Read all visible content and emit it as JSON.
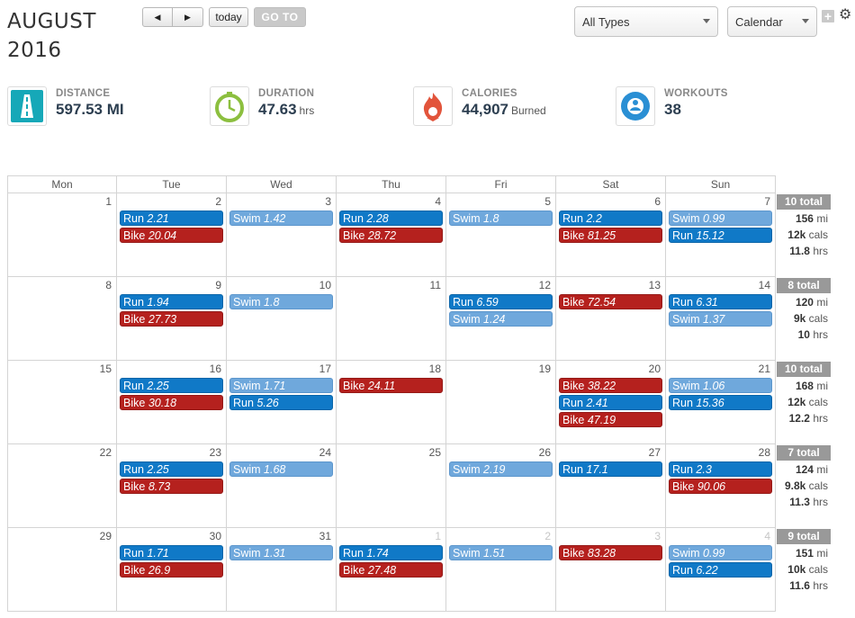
{
  "header": {
    "month": "AUGUST",
    "year": "2016",
    "nav": {
      "prev": "◀",
      "next": "▶",
      "today": "today",
      "goto": "GO TO"
    },
    "type_filter": "All Types",
    "view_select": "Calendar",
    "add_label": "+",
    "settings_label": "⚙"
  },
  "stats": [
    {
      "label": "DISTANCE",
      "value": "597.53",
      "unit": "MI",
      "icon": "road-icon",
      "color": "#16a8b8"
    },
    {
      "label": "DURATION",
      "value": "47.63",
      "unit": "hrs",
      "icon": "stopwatch-icon",
      "color": "#8cbf3f"
    },
    {
      "label": "CALORIES",
      "value": "44,907",
      "unit": "Burned",
      "icon": "flame-icon",
      "color": "#e2543b"
    },
    {
      "label": "WORKOUTS",
      "value": "38",
      "unit": "",
      "icon": "lifebuoy-icon",
      "color": "#2a8fd4"
    }
  ],
  "calendar": {
    "weekdays": [
      "Mon",
      "Tue",
      "Wed",
      "Thu",
      "Fri",
      "Sat",
      "Sun"
    ],
    "weeks": [
      {
        "days": [
          {
            "num": "1",
            "other": false,
            "events": []
          },
          {
            "num": "2",
            "other": false,
            "events": [
              {
                "type": "Run",
                "value": "2.21"
              },
              {
                "type": "Bike",
                "value": "20.04"
              }
            ]
          },
          {
            "num": "3",
            "other": false,
            "events": [
              {
                "type": "Swim",
                "value": "1.42"
              }
            ]
          },
          {
            "num": "4",
            "other": false,
            "events": [
              {
                "type": "Run",
                "value": "2.28"
              },
              {
                "type": "Bike",
                "value": "28.72"
              }
            ]
          },
          {
            "num": "5",
            "other": false,
            "events": [
              {
                "type": "Swim",
                "value": "1.8"
              }
            ]
          },
          {
            "num": "6",
            "other": false,
            "events": [
              {
                "type": "Run",
                "value": "2.2"
              },
              {
                "type": "Bike",
                "value": "81.25"
              }
            ]
          },
          {
            "num": "7",
            "other": false,
            "events": [
              {
                "type": "Swim",
                "value": "0.99"
              },
              {
                "type": "Run",
                "value": "15.12"
              }
            ]
          }
        ],
        "summary": {
          "total": "10 total",
          "mi": "156",
          "cals": "12k",
          "hrs": "11.8"
        }
      },
      {
        "days": [
          {
            "num": "8",
            "other": false,
            "events": []
          },
          {
            "num": "9",
            "other": false,
            "events": [
              {
                "type": "Run",
                "value": "1.94"
              },
              {
                "type": "Bike",
                "value": "27.73"
              }
            ]
          },
          {
            "num": "10",
            "other": false,
            "events": [
              {
                "type": "Swim",
                "value": "1.8"
              }
            ]
          },
          {
            "num": "11",
            "other": false,
            "events": []
          },
          {
            "num": "12",
            "other": false,
            "events": [
              {
                "type": "Run",
                "value": "6.59"
              },
              {
                "type": "Swim",
                "value": "1.24"
              }
            ]
          },
          {
            "num": "13",
            "other": false,
            "events": [
              {
                "type": "Bike",
                "value": "72.54"
              }
            ]
          },
          {
            "num": "14",
            "other": false,
            "events": [
              {
                "type": "Run",
                "value": "6.31"
              },
              {
                "type": "Swim",
                "value": "1.37"
              }
            ]
          }
        ],
        "summary": {
          "total": "8 total",
          "mi": "120",
          "cals": "9k",
          "hrs": "10"
        }
      },
      {
        "days": [
          {
            "num": "15",
            "other": false,
            "events": []
          },
          {
            "num": "16",
            "other": false,
            "events": [
              {
                "type": "Run",
                "value": "2.25"
              },
              {
                "type": "Bike",
                "value": "30.18"
              }
            ]
          },
          {
            "num": "17",
            "other": false,
            "events": [
              {
                "type": "Swim",
                "value": "1.71"
              },
              {
                "type": "Run",
                "value": "5.26"
              }
            ]
          },
          {
            "num": "18",
            "other": false,
            "events": [
              {
                "type": "Bike",
                "value": "24.11"
              }
            ]
          },
          {
            "num": "19",
            "other": false,
            "events": []
          },
          {
            "num": "20",
            "other": false,
            "events": [
              {
                "type": "Bike",
                "value": "38.22"
              },
              {
                "type": "Run",
                "value": "2.41"
              },
              {
                "type": "Bike",
                "value": "47.19"
              }
            ]
          },
          {
            "num": "21",
            "other": false,
            "events": [
              {
                "type": "Swim",
                "value": "1.06"
              },
              {
                "type": "Run",
                "value": "15.36"
              }
            ]
          }
        ],
        "summary": {
          "total": "10 total",
          "mi": "168",
          "cals": "12k",
          "hrs": "12.2"
        }
      },
      {
        "days": [
          {
            "num": "22",
            "other": false,
            "events": []
          },
          {
            "num": "23",
            "other": false,
            "events": [
              {
                "type": "Run",
                "value": "2.25"
              },
              {
                "type": "Bike",
                "value": "8.73"
              }
            ]
          },
          {
            "num": "24",
            "other": false,
            "events": [
              {
                "type": "Swim",
                "value": "1.68"
              }
            ]
          },
          {
            "num": "25",
            "other": false,
            "events": []
          },
          {
            "num": "26",
            "other": false,
            "events": [
              {
                "type": "Swim",
                "value": "2.19"
              }
            ]
          },
          {
            "num": "27",
            "other": false,
            "events": [
              {
                "type": "Run",
                "value": "17.1"
              }
            ]
          },
          {
            "num": "28",
            "other": false,
            "events": [
              {
                "type": "Run",
                "value": "2.3"
              },
              {
                "type": "Bike",
                "value": "90.06"
              }
            ]
          }
        ],
        "summary": {
          "total": "7 total",
          "mi": "124",
          "cals": "9.8k",
          "hrs": "11.3"
        }
      },
      {
        "days": [
          {
            "num": "29",
            "other": false,
            "events": []
          },
          {
            "num": "30",
            "other": false,
            "events": [
              {
                "type": "Run",
                "value": "1.71"
              },
              {
                "type": "Bike",
                "value": "26.9"
              }
            ]
          },
          {
            "num": "31",
            "other": false,
            "events": [
              {
                "type": "Swim",
                "value": "1.31"
              }
            ]
          },
          {
            "num": "1",
            "other": true,
            "events": [
              {
                "type": "Run",
                "value": "1.74"
              },
              {
                "type": "Bike",
                "value": "27.48"
              }
            ]
          },
          {
            "num": "2",
            "other": true,
            "events": [
              {
                "type": "Swim",
                "value": "1.51"
              }
            ]
          },
          {
            "num": "3",
            "other": true,
            "events": [
              {
                "type": "Bike",
                "value": "83.28"
              }
            ]
          },
          {
            "num": "4",
            "other": true,
            "events": [
              {
                "type": "Swim",
                "value": "0.99"
              },
              {
                "type": "Run",
                "value": "6.22"
              }
            ]
          }
        ],
        "summary": {
          "total": "9 total",
          "mi": "151",
          "cals": "10k",
          "hrs": "11.6"
        }
      }
    ],
    "units": {
      "mi": "mi",
      "cals": "cals",
      "hrs": "hrs"
    }
  }
}
